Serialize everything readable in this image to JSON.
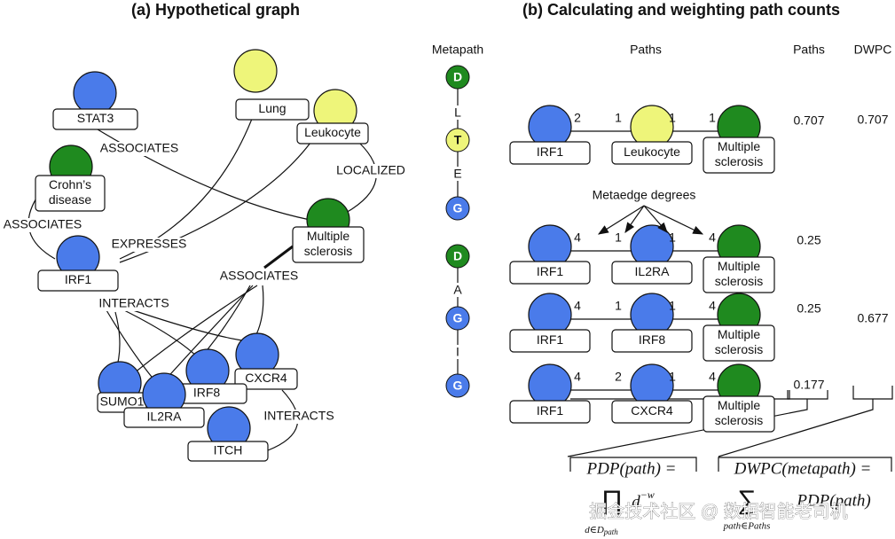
{
  "panel_a": {
    "title": "(a) Hypothetical graph",
    "nodes": [
      [
        "STAT3"
      ],
      [
        "Crohn’s",
        "disease"
      ],
      [
        "IRF1"
      ],
      [
        "Lung"
      ],
      [
        "Leukocyte"
      ],
      [
        "Multiple",
        "sclerosis"
      ],
      [
        "SUMO1"
      ],
      [
        "CXCR4"
      ],
      [
        "IRF8"
      ],
      [
        "IL2RA"
      ],
      [
        "ITCH"
      ]
    ],
    "edge_labels": [
      "ASSOCIATES",
      "ASSOCIATES",
      "EXPRESSES",
      "LOCALIZED",
      "ASSOCIATES",
      "INTERACTS",
      "INTERACTS"
    ]
  },
  "panel_b": {
    "title": "(b) Calculating and weighting path counts",
    "headers": {
      "metapath": "Metapath",
      "paths": "Paths",
      "path_count": "Paths",
      "dwpc": "DWPC"
    },
    "metapaths": [
      [
        "D",
        "L",
        "T",
        "E",
        "G"
      ],
      [
        "D",
        "A",
        "G",
        "I",
        "G"
      ]
    ],
    "rows": [
      {
        "nodes": [
          [
            "IRF1"
          ],
          [
            "Leukocyte"
          ],
          [
            "Multiple",
            "sclerosis"
          ]
        ],
        "degrees": [
          2,
          1,
          1,
          1
        ],
        "pdp": 0.707
      },
      {
        "nodes": [
          [
            "IRF1"
          ],
          [
            "IL2RA"
          ],
          [
            "Multiple",
            "sclerosis"
          ]
        ],
        "degrees": [
          4,
          1,
          1,
          4
        ],
        "pdp": 0.25
      },
      {
        "nodes": [
          [
            "IRF1"
          ],
          [
            "IRF8"
          ],
          [
            "Multiple",
            "sclerosis"
          ]
        ],
        "degrees": [
          4,
          1,
          1,
          4
        ],
        "pdp": 0.25
      },
      {
        "nodes": [
          [
            "IRF1"
          ],
          [
            "CXCR4"
          ],
          [
            "Multiple",
            "sclerosis"
          ]
        ],
        "degrees": [
          4,
          2,
          1,
          4
        ],
        "pdp": 0.177
      }
    ],
    "dwpc": [
      0.707,
      0.677
    ],
    "annotation": "Metaedge degrees",
    "formulas": {
      "pdp": {
        "lhs": "PDP(path) =",
        "operator": "∏",
        "index": "d∈D",
        "index_sub": "path",
        "term": "d",
        "term_sup": "−w"
      },
      "dwpc": {
        "lhs": "DWPC(metapath) =",
        "operator": "∑",
        "index": "path∈Paths",
        "term": "PDP(path)"
      }
    }
  },
  "watermark": "掘金技术社区 @ 数据智能老司机"
}
